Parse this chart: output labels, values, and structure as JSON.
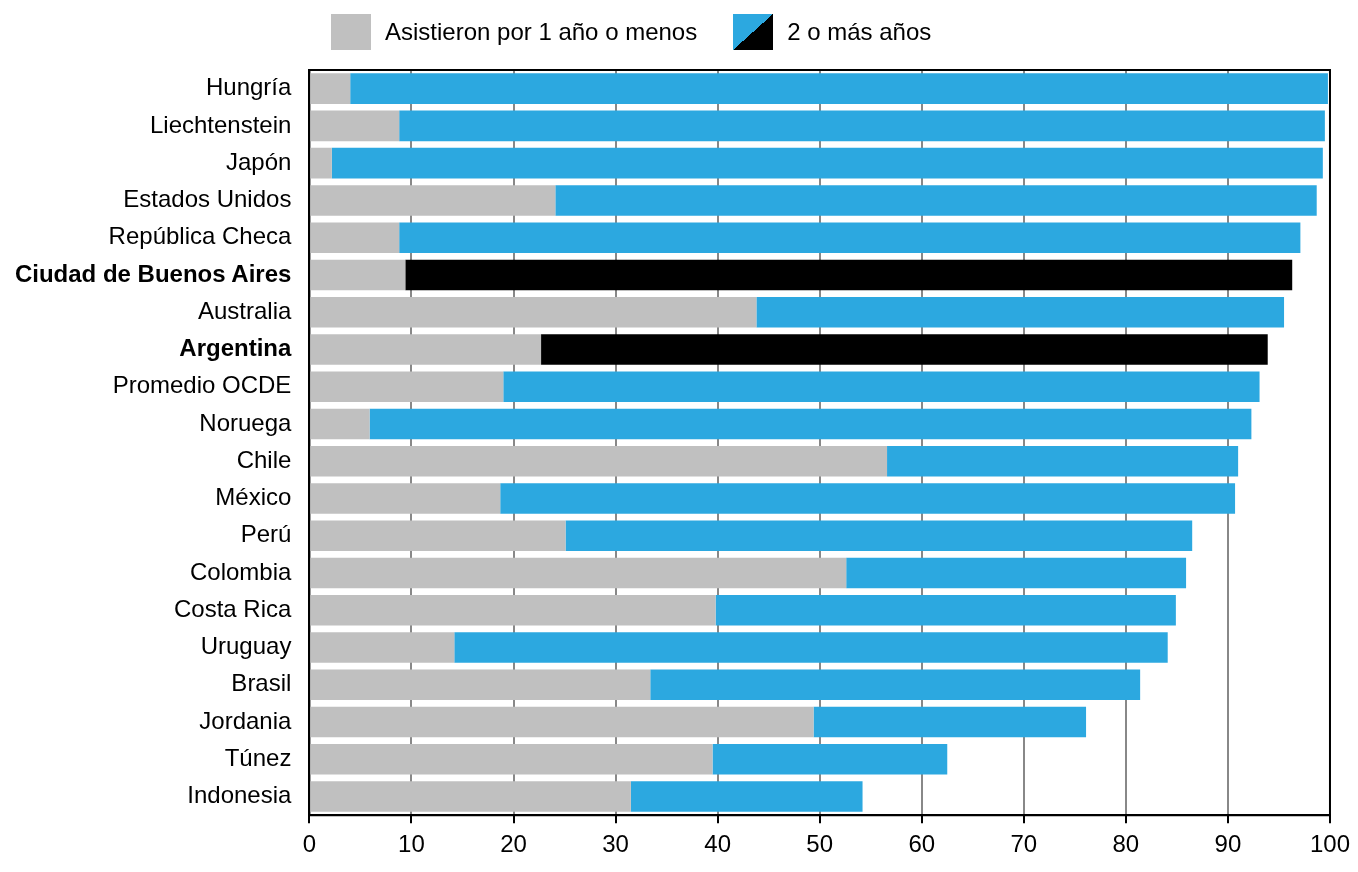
{
  "chart_data": {
    "type": "bar",
    "orientation": "horizontal",
    "stacked": true,
    "categories": [
      "Hungría",
      "Liechtenstein",
      "Japón",
      "Estados Unidos",
      "República Checa",
      "Ciudad de Buenos Aires",
      "Australia",
      "Argentina",
      "Promedio OCDE",
      "Noruega",
      "Chile",
      "México",
      "Perú",
      "Colombia",
      "Costa Rica",
      "Uruguay",
      "Brasil",
      "Jordania",
      "Túnez",
      "Indonesia"
    ],
    "series": [
      {
        "name": "Asistieron por 1 año o menos",
        "color": "#c0c0c0",
        "values": [
          4.0,
          8.8,
          2.2,
          24.1,
          8.8,
          9.4,
          43.8,
          22.7,
          19.0,
          5.9,
          56.6,
          18.7,
          25.1,
          52.6,
          39.8,
          14.2,
          33.4,
          49.4,
          39.5,
          31.5
        ]
      },
      {
        "name": "2 o más años",
        "color": "#2ca8e0",
        "colors": [
          "#2ca8e0",
          "#2ca8e0",
          "#2ca8e0",
          "#2ca8e0",
          "#2ca8e0",
          "#000000",
          "#2ca8e0",
          "#000000",
          "#2ca8e0",
          "#2ca8e0",
          "#2ca8e0",
          "#2ca8e0",
          "#2ca8e0",
          "#2ca8e0",
          "#2ca8e0",
          "#2ca8e0",
          "#2ca8e0",
          "#2ca8e0",
          "#2ca8e0",
          "#2ca8e0"
        ],
        "values": [
          95.8,
          90.7,
          97.1,
          74.6,
          88.3,
          86.9,
          51.7,
          71.2,
          74.1,
          86.4,
          34.4,
          72.0,
          61.4,
          33.3,
          45.1,
          69.9,
          48.0,
          26.7,
          23.0,
          22.7
        ]
      }
    ],
    "xlim": [
      0,
      100
    ],
    "xticks": [
      0,
      10,
      20,
      30,
      40,
      50,
      60,
      70,
      80,
      90,
      100
    ],
    "grid": "x",
    "legend": "top"
  }
}
